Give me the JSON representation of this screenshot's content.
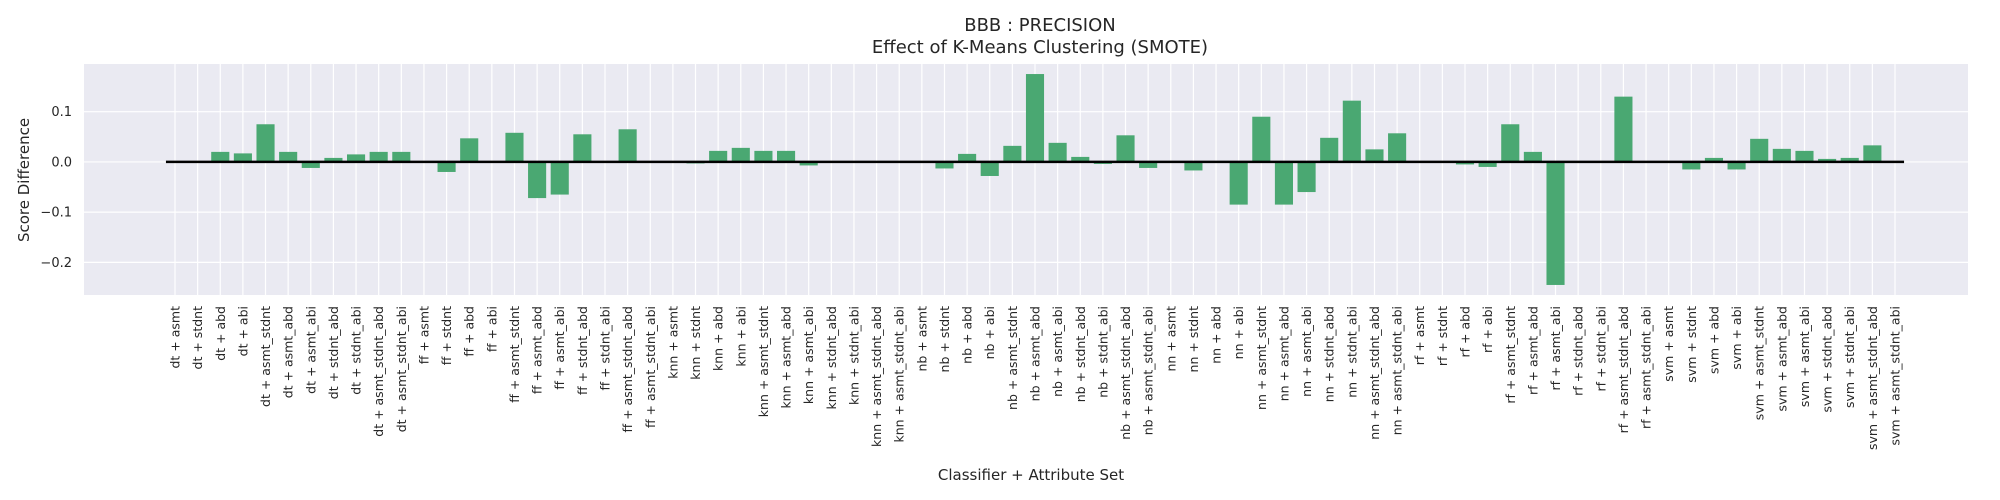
{
  "chart_data": {
    "type": "bar",
    "title": "BBB : PRECISION",
    "subtitle": "Effect of K-Means Clustering (SMOTE)",
    "xlabel": "Classifier + Attribute Set",
    "ylabel": "Score Difference",
    "ylim": [
      -0.265,
      0.195
    ],
    "yticks": [
      -0.2,
      -0.1,
      0.0,
      0.1
    ],
    "ytick_labels": [
      "−0.2",
      "−0.1",
      "0.0",
      "0.1"
    ],
    "grid": true,
    "bar_color": "#4aa872",
    "background_color": "#eaeaf2",
    "categories": [
      "dt + asmt",
      "dt + stdnt",
      "dt + abd",
      "dt + abi",
      "dt + asmt_stdnt",
      "dt + asmt_abd",
      "dt + asmt_abi",
      "dt + stdnt_abd",
      "dt + stdnt_abi",
      "dt + asmt_stdnt_abd",
      "dt + asmt_stdnt_abi",
      "ff + asmt",
      "ff + stdnt",
      "ff + abd",
      "ff + abi",
      "ff + asmt_stdnt",
      "ff + asmt_abd",
      "ff + asmt_abi",
      "ff + stdnt_abd",
      "ff + stdnt_abi",
      "ff + asmt_stdnt_abd",
      "ff + asmt_stdnt_abi",
      "knn + asmt",
      "knn + stdnt",
      "knn + abd",
      "knn + abi",
      "knn + asmt_stdnt",
      "knn + asmt_abd",
      "knn + asmt_abi",
      "knn + stdnt_abd",
      "knn + stdnt_abi",
      "knn + asmt_stdnt_abd",
      "knn + asmt_stdnt_abi",
      "nb + asmt",
      "nb + stdnt",
      "nb + abd",
      "nb + abi",
      "nb + asmt_stdnt",
      "nb + asmt_abd",
      "nb + asmt_abi",
      "nb + stdnt_abd",
      "nb + stdnt_abi",
      "nb + asmt_stdnt_abd",
      "nb + asmt_stdnt_abi",
      "nn + asmt",
      "nn + stdnt",
      "nn + abd",
      "nn + abi",
      "nn + asmt_stdnt",
      "nn + asmt_abd",
      "nn + asmt_abi",
      "nn + stdnt_abd",
      "nn + stdnt_abi",
      "nn + asmt_stdnt_abd",
      "nn + asmt_stdnt_abi",
      "rf + asmt",
      "rf + stdnt",
      "rf + abd",
      "rf + abi",
      "rf + asmt_stdnt",
      "rf + asmt_abd",
      "rf + asmt_abi",
      "rf + stdnt_abd",
      "rf + stdnt_abi",
      "rf + asmt_stdnt_abd",
      "rf + asmt_stdnt_abi",
      "svm + asmt",
      "svm + stdnt",
      "svm + abd",
      "svm + abi",
      "svm + asmt_stdnt",
      "svm + asmt_abd",
      "svm + asmt_abi",
      "svm + stdnt_abd",
      "svm + stdnt_abi",
      "svm + asmt_stdnt_abd",
      "svm + asmt_stdnt_abi"
    ],
    "values": [
      0.0,
      0.0,
      0.02,
      0.017,
      0.075,
      0.02,
      -0.012,
      0.008,
      0.015,
      0.02,
      0.02,
      0.0,
      -0.02,
      0.047,
      0.0,
      0.058,
      -0.072,
      -0.065,
      0.055,
      0.0,
      0.065,
      0.0,
      0.0,
      -0.003,
      0.022,
      0.028,
      0.022,
      0.022,
      -0.007,
      0.0,
      0.0,
      0.0,
      0.0,
      0.0,
      -0.013,
      0.016,
      -0.028,
      0.032,
      0.175,
      0.038,
      0.01,
      -0.004,
      0.053,
      -0.012,
      0.0,
      -0.017,
      0.0,
      -0.085,
      0.09,
      -0.085,
      -0.06,
      0.048,
      0.122,
      0.025,
      0.057,
      0.0,
      0.0,
      -0.005,
      -0.01,
      0.075,
      0.02,
      -0.245,
      0.0,
      0.0,
      0.13,
      0.0,
      0.0,
      -0.015,
      0.008,
      -0.015,
      0.046,
      0.026,
      0.022,
      0.006,
      0.008,
      0.033,
      0.0
    ]
  }
}
